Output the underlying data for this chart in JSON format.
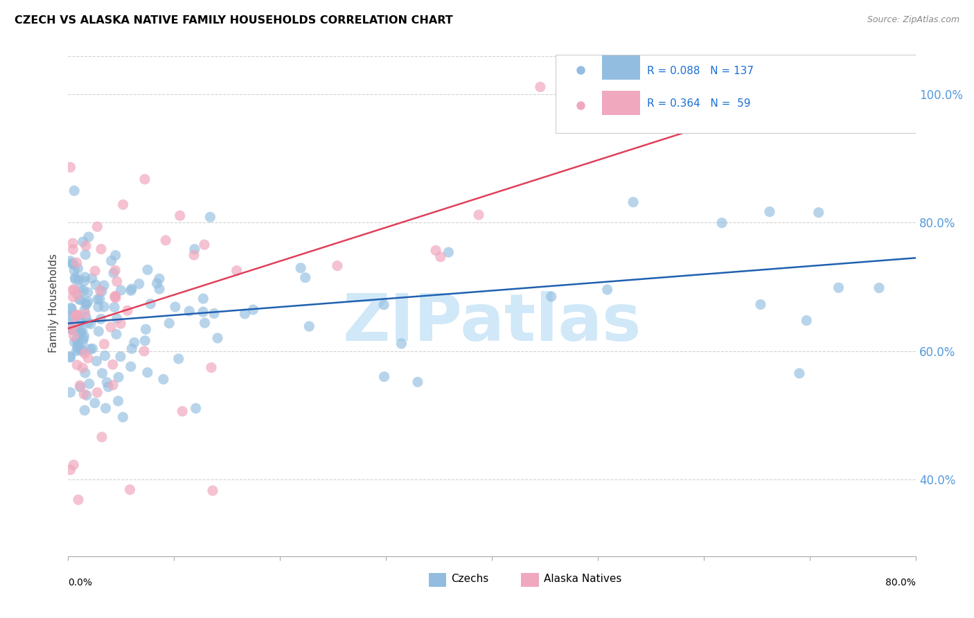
{
  "title": "CZECH VS ALASKA NATIVE FAMILY HOUSEHOLDS CORRELATION CHART",
  "source": "Source: ZipAtlas.com",
  "ylabel": "Family Households",
  "y_tick_labels": [
    "40.0%",
    "60.0%",
    "80.0%",
    "100.0%"
  ],
  "y_ticks": [
    0.4,
    0.6,
    0.8,
    1.0
  ],
  "x_min": 0.0,
  "x_max": 0.8,
  "y_min": 0.28,
  "y_max": 1.07,
  "czechs_color": "#92bde0",
  "alaska_color": "#f0a8be",
  "trendline_czech_color": "#2060b0",
  "trendline_alaska_color": "#e0405a",
  "right_tick_color": "#5599dd",
  "grid_color": "#cccccc",
  "legend_R_N_color": "#1a6fd4",
  "watermark_color": "#d0e8f8",
  "watermark_text": "ZIPatlas",
  "r_czech": 0.088,
  "n_czech": 137,
  "r_alaska": 0.364,
  "n_alaska": 59,
  "czech_trend_x0": 0.0,
  "czech_trend_y0": 0.643,
  "czech_trend_x1": 0.8,
  "czech_trend_y1": 0.745,
  "alaska_trend_x0": 0.0,
  "alaska_trend_y0": 0.635,
  "alaska_trend_x1": 0.8,
  "alaska_trend_y1": 1.055
}
